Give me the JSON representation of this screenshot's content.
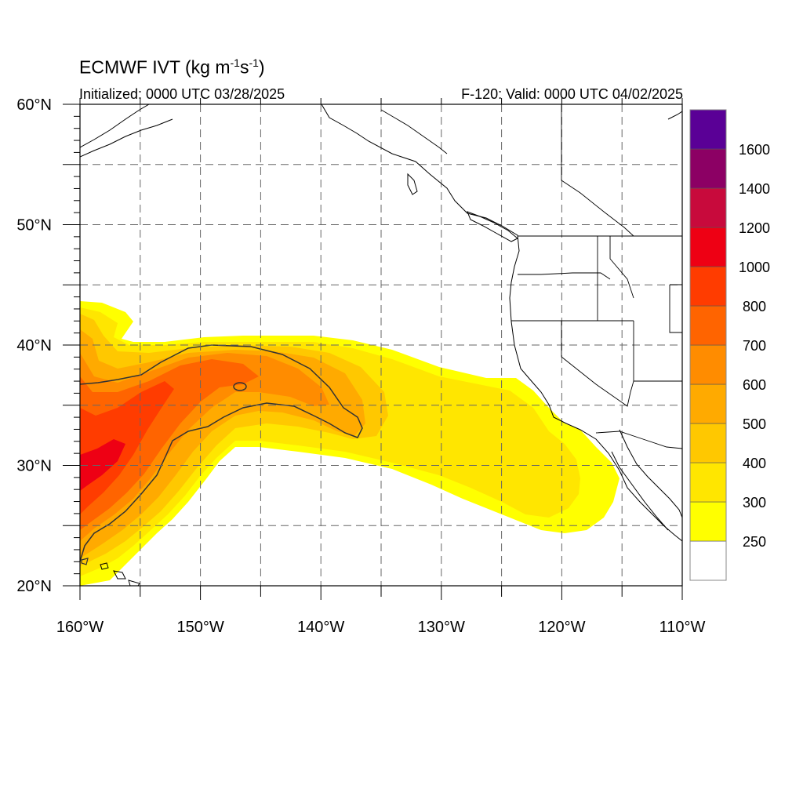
{
  "title": {
    "text": "ECMWF IVT (kg m",
    "sup1": "-1",
    "mid": "s",
    "sup2": "-1",
    "close": ")"
  },
  "subtitle_left": "Initialized: 0000 UTC 03/28/2025",
  "subtitle_right": "F-120: Valid: 0000 UTC 04/02/2025",
  "lat_labels": [
    {
      "value": 60,
      "label": "60°N"
    },
    {
      "value": 50,
      "label": "50°N"
    },
    {
      "value": 40,
      "label": "40°N"
    },
    {
      "value": 30,
      "label": "30°N"
    },
    {
      "value": 20,
      "label": "20°N"
    }
  ],
  "lon_labels": [
    {
      "value": -160,
      "label": "160°W"
    },
    {
      "value": -150,
      "label": "150°W"
    },
    {
      "value": -140,
      "label": "140°W"
    },
    {
      "value": -130,
      "label": "130°W"
    },
    {
      "value": -120,
      "label": "120°W"
    },
    {
      "value": -110,
      "label": "110°W"
    }
  ],
  "colorbar": {
    "levels": [
      {
        "label": "",
        "color": "#ffffff"
      },
      {
        "label": "250",
        "color": "#ffff00"
      },
      {
        "label": "300",
        "color": "#ffe600"
      },
      {
        "label": "400",
        "color": "#ffc800"
      },
      {
        "label": "500",
        "color": "#ffaa00"
      },
      {
        "label": "600",
        "color": "#ff8c00"
      },
      {
        "label": "700",
        "color": "#ff6400"
      },
      {
        "label": "800",
        "color": "#ff3c00"
      },
      {
        "label": "1000",
        "color": "#ee0014"
      },
      {
        "label": "1200",
        "color": "#c80a3c"
      },
      {
        "label": "1400",
        "color": "#8c0064"
      },
      {
        "label": "1600",
        "color": "#5a0096"
      }
    ]
  }
}
